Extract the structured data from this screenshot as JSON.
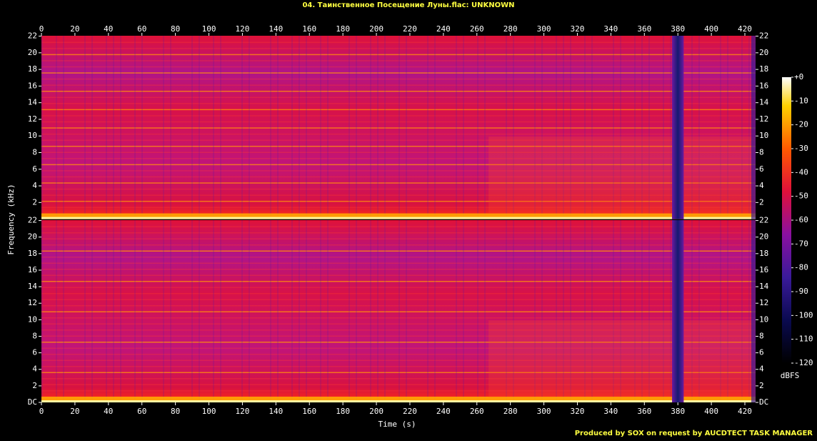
{
  "chart_data": {
    "type": "spectrogram",
    "title": "04. Таинственное Посещение Луны.flac: UNKNOWN",
    "xlabel": "Time (s)",
    "ylabel": "Frequency (kHz)",
    "xlim": [
      0,
      426.4
    ],
    "xticks": [
      0,
      20,
      40,
      60,
      80,
      100,
      120,
      140,
      160,
      180,
      200,
      220,
      240,
      260,
      280,
      300,
      320,
      340,
      360,
      380,
      400,
      420
    ],
    "ylim": [
      0,
      22.05
    ],
    "yticks": [
      {
        "value": 0,
        "label": "DC"
      },
      2,
      4,
      6,
      8,
      10,
      12,
      14,
      16,
      18,
      20,
      22
    ],
    "colorbar": {
      "label": "dBFS",
      "lim": [
        -120,
        0
      ],
      "ticks": [
        {
          "value": 0,
          "label": "+0"
        },
        -10,
        -20,
        -30,
        -40,
        -50,
        -60,
        -70,
        -80,
        -90,
        -100,
        -110,
        -120
      ]
    },
    "footer": "Produced by SOX on request by AUCDTECT TASK MANAGER"
  }
}
